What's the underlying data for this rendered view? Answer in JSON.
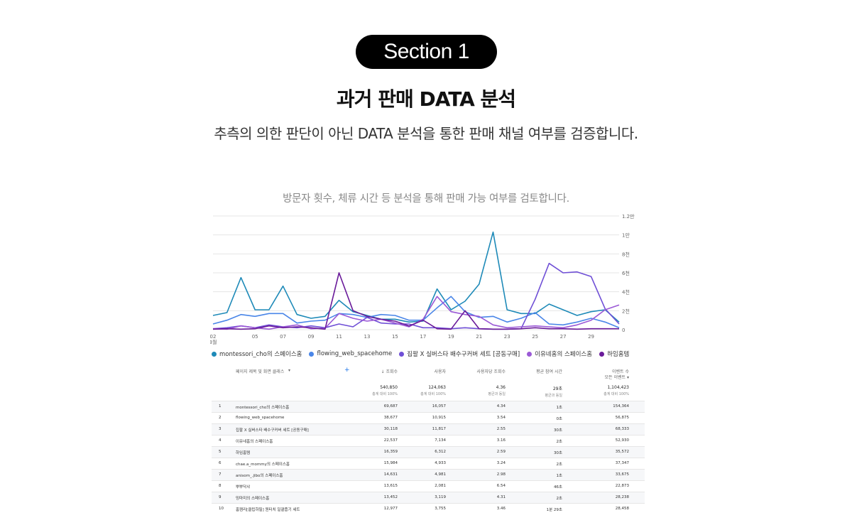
{
  "header": {
    "section_label": "Section 1",
    "title": "과거 판매 DATA 분석",
    "subtitle": "추측의 의한 판단이 아닌 DATA 분석을 통한 판매 채널 여부를 검증합니다.",
    "caption": "방문자 횟수, 체류 시간 등 분석을 통해 판매 가능 여부를 검토합니다."
  },
  "chart_data": {
    "type": "line",
    "title": "",
    "xlabel": "",
    "ylabel": "",
    "x_ticks": [
      "02",
      "05",
      "07",
      "09",
      "11",
      "13",
      "15",
      "17",
      "19",
      "21",
      "23",
      "25",
      "27",
      "29"
    ],
    "x_month_label": "3월",
    "y_ticks": [
      "0",
      "2천",
      "4천",
      "6천",
      "8천",
      "1만",
      "1.2만"
    ],
    "ylim": [
      0,
      12000
    ],
    "grid": true,
    "legend_position": "bottom",
    "x": [
      2,
      3,
      4,
      5,
      6,
      7,
      8,
      9,
      10,
      11,
      12,
      13,
      14,
      15,
      16,
      17,
      18,
      19,
      20,
      21,
      22,
      23,
      24,
      25,
      26,
      27,
      28,
      29,
      30,
      31
    ],
    "series": [
      {
        "name": "montessori_cho의 스페이스홈",
        "color": "#1e8ab8",
        "values": [
          1500,
          1800,
          5500,
          2100,
          2100,
          4600,
          1600,
          1200,
          1400,
          3100,
          1900,
          1500,
          1100,
          1100,
          800,
          900,
          4300,
          2100,
          3000,
          4800,
          10300,
          2100,
          1700,
          1700,
          2700,
          2100,
          1500,
          1900,
          2100,
          800
        ]
      },
      {
        "name": "flowing_web_spacehome",
        "color": "#4a86e8",
        "values": [
          600,
          1000,
          1600,
          1400,
          1700,
          1700,
          700,
          900,
          1000,
          1700,
          1600,
          1300,
          1600,
          1500,
          1000,
          1000,
          2300,
          3500,
          1900,
          1300,
          1400,
          800,
          1200,
          1800,
          600,
          500,
          800,
          1200,
          800,
          200
        ]
      },
      {
        "name": "집팔 X 실버스타 배수구커버 세트 [공동구매]",
        "color": "#6f4fd6",
        "values": [
          100,
          200,
          400,
          200,
          500,
          300,
          200,
          400,
          200,
          600,
          300,
          1300,
          700,
          600,
          600,
          200,
          200,
          100,
          200,
          100,
          50,
          50,
          100,
          3200,
          7000,
          6000,
          6100,
          5600,
          2200,
          600
        ]
      },
      {
        "name": "이유네홈의 스페이스홈",
        "color": "#9b59d6",
        "values": [
          100,
          50,
          400,
          200,
          50,
          300,
          500,
          100,
          150,
          1700,
          1200,
          900,
          1100,
          700,
          300,
          1100,
          3500,
          1900,
          1600,
          1400,
          500,
          200,
          300,
          400,
          300,
          200,
          500,
          1000,
          2100,
          2600
        ]
      },
      {
        "name": "하임홈템",
        "color": "#6a1b9a",
        "values": [
          50,
          100,
          50,
          100,
          400,
          200,
          300,
          200,
          50,
          6000,
          2000,
          1400,
          1100,
          900,
          400,
          1000,
          100,
          50,
          2000,
          100,
          50,
          50,
          100,
          200,
          100,
          100,
          50,
          100,
          100,
          100
        ]
      }
    ]
  },
  "table": {
    "headers": {
      "name": "페이지 제목 및 화면 클래스",
      "views": "조회수",
      "users": "사용자",
      "views_per_user": "사용자당 조회수",
      "avg_time": "평균 참여 시간",
      "events": "이벤트 수",
      "events_sub": "모든 이벤트"
    },
    "totals": {
      "views": "540,850",
      "views_sub": "총계 대비 100%",
      "users": "124,063",
      "users_sub": "총계 대비 100%",
      "views_per_user": "4.36",
      "vpu_sub": "평균과 동일",
      "avg_time": "29초",
      "time_sub": "평균과 동일",
      "events": "1,104,423",
      "events_sub2": "총계 대비 100%"
    },
    "rows": [
      {
        "n": "1",
        "name": "montessori_cho의 스페이스홈",
        "views": "69,687",
        "users": "16,057",
        "vpu": "4.34",
        "time": "1초",
        "events": "154,364"
      },
      {
        "n": "2",
        "name": "flowing_web_spacehome",
        "views": "38,677",
        "users": "10,915",
        "vpu": "3.54",
        "time": "0초",
        "events": "56,875"
      },
      {
        "n": "3",
        "name": "집팔 X 실버스타 배수구커버 세트 [공동구매]",
        "views": "30,118",
        "users": "11,817",
        "vpu": "2.55",
        "time": "30초",
        "events": "68,333"
      },
      {
        "n": "4",
        "name": "이유네홈의 스페이스홈",
        "views": "22,537",
        "users": "7,134",
        "vpu": "3.16",
        "time": "2초",
        "events": "52,930"
      },
      {
        "n": "5",
        "name": "하임홈템",
        "views": "16,359",
        "users": "6,312",
        "vpu": "2.59",
        "time": "30초",
        "events": "35,572"
      },
      {
        "n": "6",
        "name": "chae.a_mommy의 스페이스홈",
        "views": "15,984",
        "users": "4,933",
        "vpu": "3.24",
        "time": "2초",
        "events": "37,347"
      },
      {
        "n": "7",
        "name": "anisom_.jibo의 스페이스홈",
        "views": "14,631",
        "users": "4,981",
        "vpu": "2.98",
        "time": "1초",
        "events": "33,675"
      },
      {
        "n": "8",
        "name": "뿌뿌닥샤",
        "views": "13,615",
        "users": "2,081",
        "vpu": "6.54",
        "time": "46초",
        "events": "22,873"
      },
      {
        "n": "9",
        "name": "밍마미의 스페이스홈",
        "views": "13,452",
        "users": "3,119",
        "vpu": "4.31",
        "time": "2초",
        "events": "28,238"
      },
      {
        "n": "10",
        "name": "홈캠리[클립하필] 원터치 일괄줍기 세트",
        "views": "12,977",
        "users": "3,755",
        "vpu": "3.46",
        "time": "1분 29초",
        "events": "28,458"
      }
    ]
  }
}
